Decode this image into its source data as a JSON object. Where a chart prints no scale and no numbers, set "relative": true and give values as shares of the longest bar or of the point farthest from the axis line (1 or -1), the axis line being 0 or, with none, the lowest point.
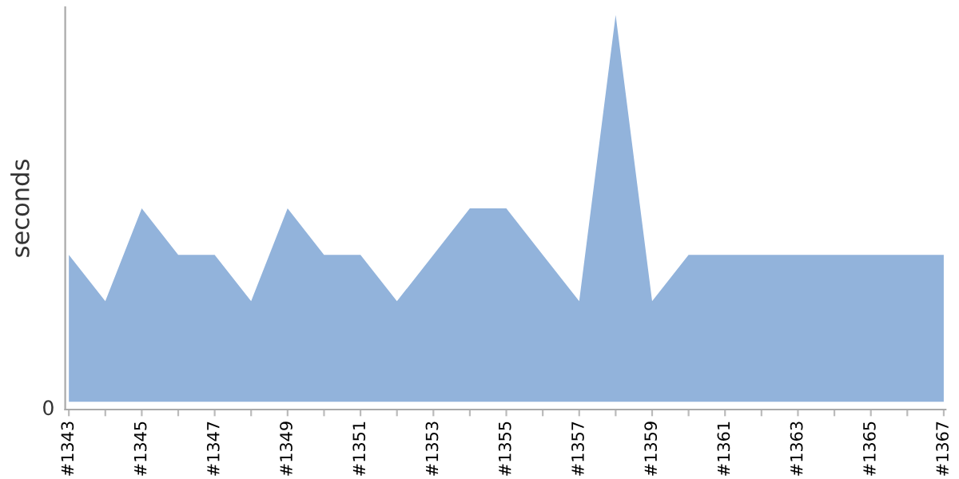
{
  "chart_data": {
    "type": "area",
    "ylabel": "seconds",
    "relative": true,
    "color": "#92b3db",
    "categories": [
      "#1343",
      null,
      "#1345",
      null,
      "#1347",
      null,
      "#1349",
      null,
      "#1351",
      null,
      "#1353",
      null,
      "#1355",
      null,
      "#1357",
      null,
      "#1359",
      null,
      "#1361",
      null,
      "#1363",
      null,
      "#1365",
      null,
      "#1367"
    ],
    "values": [
      0.38,
      0.26,
      0.5,
      0.38,
      0.38,
      0.26,
      0.5,
      0.38,
      0.38,
      0.26,
      0.38,
      0.5,
      0.5,
      0.38,
      0.26,
      1,
      0.26,
      0.38,
      0.38,
      0.38,
      0.38,
      0.38,
      0.38,
      0.38,
      0.38
    ],
    "annotations": [
      "0"
    ]
  }
}
